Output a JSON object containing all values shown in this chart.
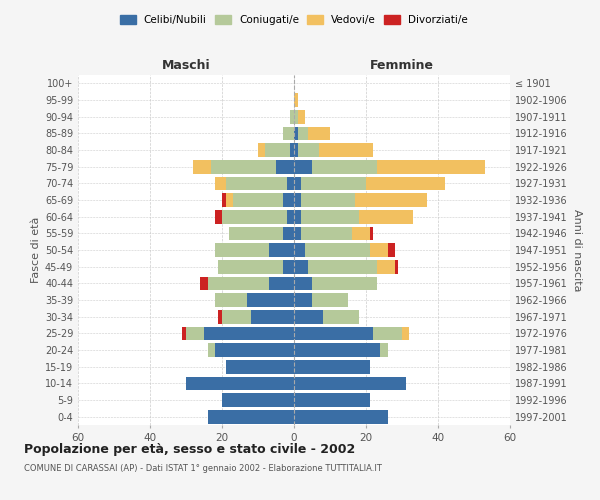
{
  "age_groups": [
    "0-4",
    "5-9",
    "10-14",
    "15-19",
    "20-24",
    "25-29",
    "30-34",
    "35-39",
    "40-44",
    "45-49",
    "50-54",
    "55-59",
    "60-64",
    "65-69",
    "70-74",
    "75-79",
    "80-84",
    "85-89",
    "90-94",
    "95-99",
    "100+"
  ],
  "birth_years": [
    "1997-2001",
    "1992-1996",
    "1987-1991",
    "1982-1986",
    "1977-1981",
    "1972-1976",
    "1967-1971",
    "1962-1966",
    "1957-1961",
    "1952-1956",
    "1947-1951",
    "1942-1946",
    "1937-1941",
    "1932-1936",
    "1927-1931",
    "1922-1926",
    "1917-1921",
    "1912-1916",
    "1907-1911",
    "1902-1906",
    "≤ 1901"
  ],
  "maschi": {
    "celibi": [
      24,
      20,
      30,
      19,
      22,
      25,
      12,
      13,
      7,
      3,
      7,
      3,
      2,
      3,
      2,
      5,
      1,
      0,
      0,
      0,
      0
    ],
    "coniugati": [
      0,
      0,
      0,
      0,
      2,
      5,
      8,
      9,
      17,
      18,
      15,
      15,
      18,
      14,
      17,
      18,
      7,
      3,
      1,
      0,
      0
    ],
    "vedovi": [
      0,
      0,
      0,
      0,
      0,
      0,
      0,
      0,
      0,
      0,
      0,
      0,
      0,
      2,
      3,
      5,
      2,
      0,
      0,
      0,
      0
    ],
    "divorziati": [
      0,
      0,
      0,
      0,
      0,
      1,
      1,
      0,
      2,
      0,
      0,
      0,
      2,
      1,
      0,
      0,
      0,
      0,
      0,
      0,
      0
    ]
  },
  "femmine": {
    "nubili": [
      26,
      21,
      31,
      21,
      24,
      22,
      8,
      5,
      5,
      4,
      3,
      2,
      2,
      2,
      2,
      5,
      1,
      1,
      0,
      0,
      0
    ],
    "coniugate": [
      0,
      0,
      0,
      0,
      2,
      8,
      10,
      10,
      18,
      19,
      18,
      14,
      16,
      15,
      18,
      18,
      6,
      3,
      1,
      0,
      0
    ],
    "vedove": [
      0,
      0,
      0,
      0,
      0,
      2,
      0,
      0,
      0,
      5,
      5,
      5,
      15,
      20,
      22,
      30,
      15,
      6,
      2,
      1,
      0
    ],
    "divorziate": [
      0,
      0,
      0,
      0,
      0,
      0,
      0,
      0,
      0,
      1,
      2,
      1,
      0,
      0,
      0,
      0,
      0,
      0,
      0,
      0,
      0
    ]
  },
  "colors": {
    "celibi": "#3a6ea5",
    "coniugati": "#b5c99a",
    "vedovi": "#f2c060",
    "divorziati": "#cc2222"
  },
  "title": "Popolazione per età, sesso e stato civile - 2002",
  "subtitle": "COMUNE DI CARASSAI (AP) - Dati ISTAT 1° gennaio 2002 - Elaborazione TUTTITALIA.IT",
  "xlabel_left": "Maschi",
  "xlabel_right": "Femmine",
  "ylabel_left": "Fasce di età",
  "ylabel_right": "Anni di nascita",
  "xlim": 60,
  "bg_color": "#f5f5f5",
  "plot_bg": "#ffffff",
  "grid_color": "#cccccc"
}
